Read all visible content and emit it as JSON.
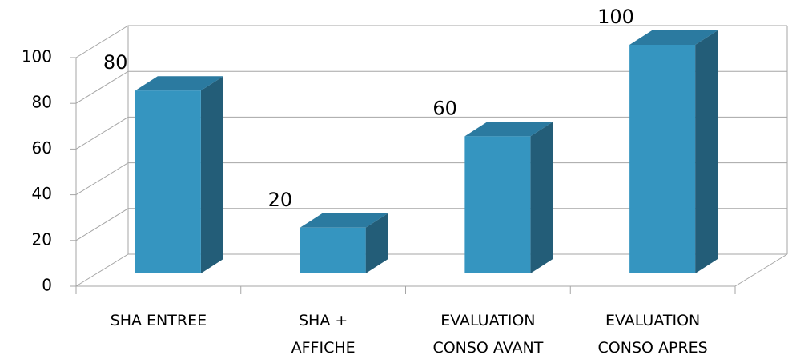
{
  "chart_data": {
    "type": "bar",
    "categories": [
      "SHA ENTREE",
      "SHA +\nAFFICHE",
      "EVALUATION\nCONSO AVANT",
      "EVALUATION\nCONSO APRES"
    ],
    "values": [
      80,
      20,
      60,
      100
    ],
    "color": "#3595c0",
    "ylim": [
      0,
      100
    ],
    "yticks": [
      0,
      20,
      40,
      60,
      80,
      100
    ],
    "grid": true
  }
}
